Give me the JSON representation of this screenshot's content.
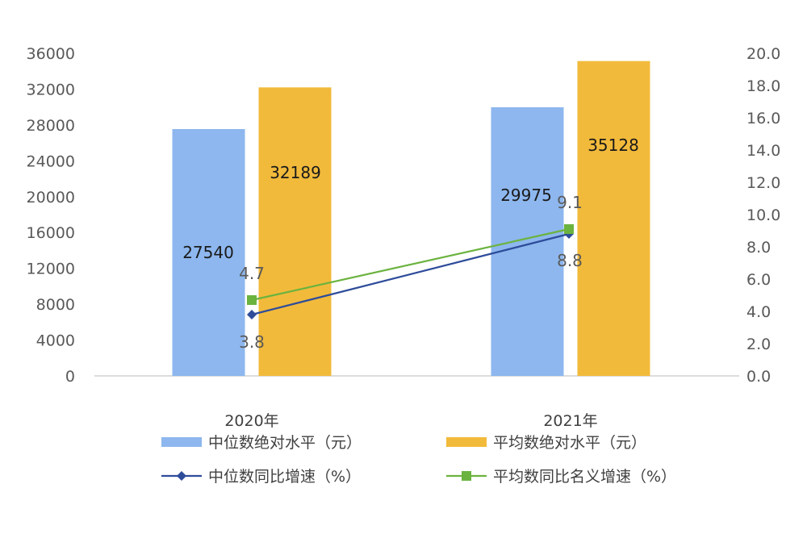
{
  "chart_data": {
    "type": "bar",
    "categories": [
      "2020年",
      "2021年"
    ],
    "series": [
      {
        "name": "中位数绝对水平（元）",
        "kind": "bar",
        "axis": "left",
        "color": "#8DB7EE",
        "values": [
          27540,
          29975
        ],
        "labels": [
          "27540",
          "29975"
        ]
      },
      {
        "name": "平均数绝对水平（元）",
        "kind": "bar",
        "axis": "left",
        "color": "#F2BA3B",
        "values": [
          32189,
          35128
        ],
        "labels": [
          "32189",
          "35128"
        ]
      },
      {
        "name": "中位数同比增速（%）",
        "kind": "line",
        "axis": "right",
        "color": "#2E4C9A",
        "marker": "diamond",
        "values": [
          3.8,
          8.8
        ],
        "labels": [
          "3.8",
          "8.8"
        ]
      },
      {
        "name": "平均数同比名义增速（%）",
        "kind": "line",
        "axis": "right",
        "color": "#6BB33F",
        "marker": "square",
        "values": [
          4.7,
          9.1
        ],
        "labels": [
          "4.7",
          "9.1"
        ]
      }
    ],
    "yleft": {
      "ylim": [
        0,
        36000
      ],
      "ticks": [
        "0",
        "4000",
        "8000",
        "12000",
        "16000",
        "20000",
        "24000",
        "28000",
        "32000",
        "36000"
      ]
    },
    "yright": {
      "ylim": [
        0,
        20
      ],
      "ticks": [
        "0.0",
        "2.0",
        "4.0",
        "6.0",
        "8.0",
        "10.0",
        "12.0",
        "14.0",
        "16.0",
        "18.0",
        "20.0"
      ]
    },
    "grid": false,
    "legend_position": "bottom"
  }
}
